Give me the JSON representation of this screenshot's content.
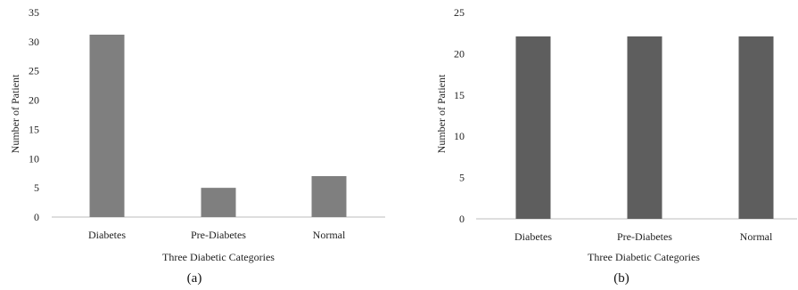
{
  "chart_data": [
    {
      "type": "bar",
      "panel_label": "(a)",
      "categories": [
        "Diabetes",
        "Pre-Diabetes",
        "Normal"
      ],
      "values": [
        31.2,
        5,
        7
      ],
      "xlabel": "Three Diabetic Categories",
      "ylabel": "Number of Patient",
      "ylim": [
        0,
        35
      ],
      "yticks": [
        "0",
        "5",
        "10",
        "15",
        "20",
        "25",
        "30",
        "35"
      ],
      "grid": false,
      "bar_color": "#7f7f7f"
    },
    {
      "type": "bar",
      "panel_label": "(b)",
      "categories": [
        "Diabetes",
        "Pre-Diabetes",
        "Normal"
      ],
      "values": [
        22.1,
        22.1,
        22.1
      ],
      "xlabel": "Three Diabetic Categories",
      "ylabel": "Number of Patient",
      "ylim": [
        0,
        25
      ],
      "yticks": [
        "0",
        "5",
        "10",
        "15",
        "20",
        "25"
      ],
      "grid": false,
      "bar_color": "#5e5e5e"
    }
  ]
}
